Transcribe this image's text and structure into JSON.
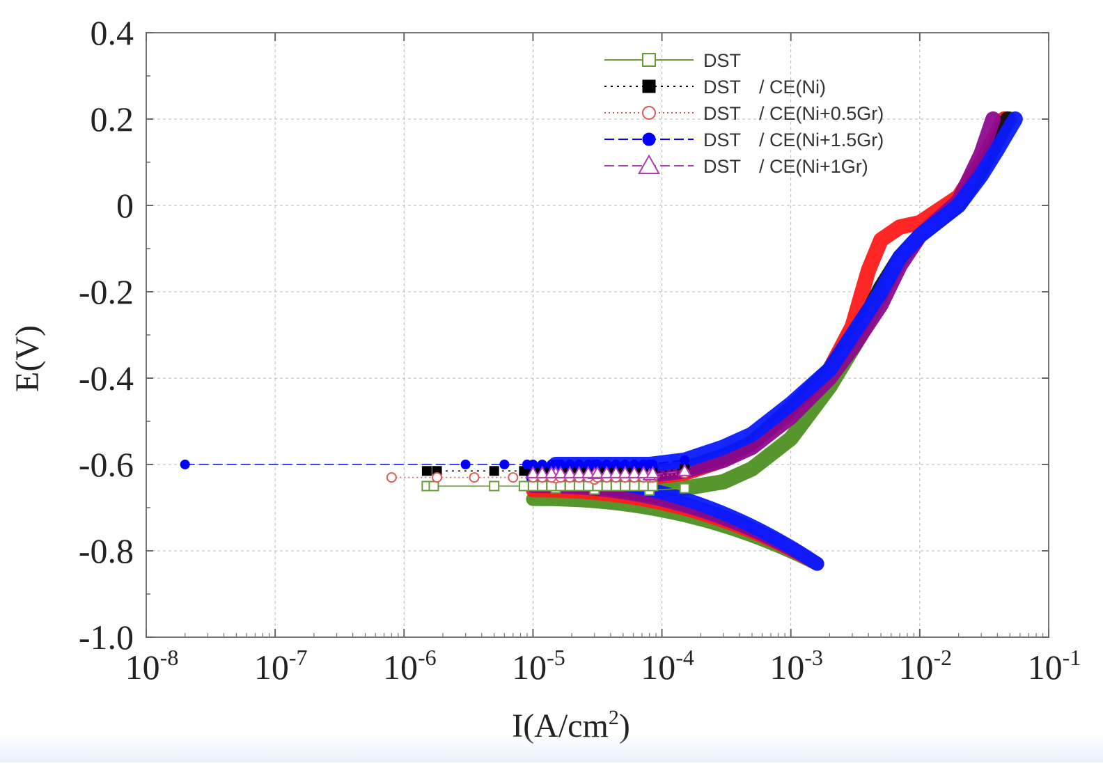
{
  "chart_data": {
    "type": "line",
    "title": "",
    "xlabel": "I(A/cm",
    "xlabel_sup": "2",
    "xlabel_close": ")",
    "ylabel": "E(V)",
    "xscale": "log",
    "xlim": [
      1e-08,
      0.1
    ],
    "ylim": [
      -1.0,
      0.4
    ],
    "grid": true,
    "legend_position": "top-right",
    "y_ticks": [
      {
        "value": 0.4,
        "label": "0.4"
      },
      {
        "value": 0.2,
        "label": "0.2"
      },
      {
        "value": 0.0,
        "label": "0"
      },
      {
        "value": -0.2,
        "label": "-0.2"
      },
      {
        "value": -0.4,
        "label": "-0.4"
      },
      {
        "value": -0.6,
        "label": "-0.6"
      },
      {
        "value": -0.8,
        "label": "-0.8"
      },
      {
        "value": -1.0,
        "label": "-1.0"
      }
    ],
    "x_ticks": [
      {
        "exp": -8,
        "base": "10",
        "sup": "-8"
      },
      {
        "exp": -7,
        "base": "10",
        "sup": "-7"
      },
      {
        "exp": -6,
        "base": "10",
        "sup": "-6"
      },
      {
        "exp": -5,
        "base": "10",
        "sup": "-5"
      },
      {
        "exp": -4,
        "base": "10",
        "sup": "-4"
      },
      {
        "exp": -3,
        "base": "10",
        "sup": "-3"
      },
      {
        "exp": -2,
        "base": "10",
        "sup": "-2"
      },
      {
        "exp": -1,
        "base": "10",
        "sup": "-1"
      }
    ],
    "series": [
      {
        "name": "DST",
        "label_a": "DST",
        "label_b": "",
        "color": "#6a9a3a",
        "curve_color": "#4e8f22",
        "marker": "open-square",
        "dash": "",
        "ecorr": -0.65,
        "shift": 0.0,
        "points": [
          [
            1.5e-06,
            -0.65
          ],
          [
            1.7e-06,
            -0.65
          ],
          [
            5e-06,
            -0.65
          ],
          [
            8.5e-06,
            -0.65
          ],
          [
            1.5e-05,
            -0.655
          ],
          [
            3e-05,
            -0.658
          ],
          [
            8e-05,
            -0.66
          ],
          [
            0.00015,
            -0.655
          ],
          [
            0.0003,
            -0.64
          ],
          [
            0.0005,
            -0.61
          ],
          [
            0.001,
            -0.54
          ],
          [
            0.002,
            -0.42
          ],
          [
            0.0035,
            -0.3
          ],
          [
            0.005,
            -0.21
          ],
          [
            0.007,
            -0.13
          ],
          [
            0.01,
            -0.07
          ],
          [
            0.02,
            0.0
          ],
          [
            0.03,
            0.08
          ],
          [
            0.04,
            0.15
          ],
          [
            0.05,
            0.2
          ]
        ]
      },
      {
        "name": "DST / CE(Ni)",
        "label_a": "DST",
        "label_b": "/ CE(Ni)",
        "color": "#000000",
        "curve_color": "#111111",
        "marker": "filled-square",
        "dash": "3,6",
        "ecorr": -0.615,
        "shift": 0.0,
        "points": [
          [
            1.5e-06,
            -0.615
          ],
          [
            1.8e-06,
            -0.615
          ],
          [
            5e-06,
            -0.615
          ],
          [
            8.5e-06,
            -0.615
          ],
          [
            1.5e-05,
            -0.615
          ],
          [
            3e-05,
            -0.618
          ],
          [
            8e-05,
            -0.62
          ],
          [
            0.00015,
            -0.61
          ],
          [
            0.0003,
            -0.58
          ],
          [
            0.0005,
            -0.55
          ],
          [
            0.001,
            -0.47
          ],
          [
            0.002,
            -0.38
          ],
          [
            0.0035,
            -0.28
          ],
          [
            0.005,
            -0.19
          ],
          [
            0.007,
            -0.12
          ],
          [
            0.01,
            -0.07
          ],
          [
            0.02,
            0.0
          ],
          [
            0.03,
            0.08
          ],
          [
            0.04,
            0.15
          ],
          [
            0.048,
            0.2
          ]
        ]
      },
      {
        "name": "DST / CE(Ni+0.5Gr)",
        "label_a": "DST",
        "label_b": "/ CE(Ni+0.5Gr)",
        "color": "#e05a5a",
        "curve_color": "#ff1a1a",
        "marker": "open-circle",
        "dash": "2,4",
        "ecorr": -0.63,
        "shift": 0.0,
        "points": [
          [
            8e-07,
            -0.63
          ],
          [
            1.8e-06,
            -0.63
          ],
          [
            3.5e-06,
            -0.63
          ],
          [
            7e-06,
            -0.63
          ],
          [
            1.5e-05,
            -0.632
          ],
          [
            3e-05,
            -0.635
          ],
          [
            8e-05,
            -0.63
          ],
          [
            0.00015,
            -0.62
          ],
          [
            0.0003,
            -0.59
          ],
          [
            0.0005,
            -0.55
          ],
          [
            0.001,
            -0.48
          ],
          [
            0.002,
            -0.38
          ],
          [
            0.003,
            -0.28
          ],
          [
            0.004,
            -0.15
          ],
          [
            0.005,
            -0.08
          ],
          [
            0.007,
            -0.05
          ],
          [
            0.01,
            -0.04
          ],
          [
            0.02,
            0.02
          ],
          [
            0.03,
            0.1
          ],
          [
            0.045,
            0.2
          ]
        ]
      },
      {
        "name": "DST / CE(Ni+1.5Gr)",
        "label_a": "DST",
        "label_b": "/ CE(Ni+1.5Gr)",
        "color": "#0000ff",
        "curve_color": "#0a1aff",
        "marker": "filled-circle",
        "dash": "14,6",
        "ecorr": -0.6,
        "shift": 0.0,
        "points": [
          [
            2e-08,
            -0.6
          ],
          [
            3e-06,
            -0.6
          ],
          [
            6e-06,
            -0.6
          ],
          [
            9e-06,
            -0.6
          ],
          [
            1.5e-05,
            -0.6
          ],
          [
            3e-05,
            -0.6
          ],
          [
            8e-05,
            -0.6
          ],
          [
            0.00015,
            -0.59
          ],
          [
            0.0003,
            -0.56
          ],
          [
            0.0005,
            -0.53
          ],
          [
            0.001,
            -0.46
          ],
          [
            0.002,
            -0.38
          ],
          [
            0.003,
            -0.3
          ],
          [
            0.005,
            -0.2
          ],
          [
            0.007,
            -0.12
          ],
          [
            0.01,
            -0.07
          ],
          [
            0.02,
            0.0
          ],
          [
            0.03,
            0.07
          ],
          [
            0.04,
            0.13
          ],
          [
            0.055,
            0.2
          ]
        ]
      },
      {
        "name": "DST / CE(Ni+1Gr)",
        "label_a": "DST",
        "label_b": "/ CE(Ni+1Gr)",
        "color": "#b03ab0",
        "curve_color": "#8e0a8e",
        "marker": "open-triangle",
        "dash": "14,6",
        "ecorr": -0.62,
        "shift": 0.0,
        "points": [
          [
            1.5e-05,
            -0.62
          ],
          [
            3e-05,
            -0.622
          ],
          [
            8e-05,
            -0.625
          ],
          [
            0.00015,
            -0.615
          ],
          [
            0.0003,
            -0.59
          ],
          [
            0.0005,
            -0.56
          ],
          [
            0.001,
            -0.49
          ],
          [
            0.002,
            -0.4
          ],
          [
            0.003,
            -0.33
          ],
          [
            0.005,
            -0.23
          ],
          [
            0.007,
            -0.14
          ],
          [
            0.01,
            -0.07
          ],
          [
            0.02,
            0.01
          ],
          [
            0.03,
            0.12
          ],
          [
            0.037,
            0.2
          ]
        ]
      }
    ],
    "cathodic_tip": {
      "x": 0.0016,
      "y": -0.8
    }
  }
}
